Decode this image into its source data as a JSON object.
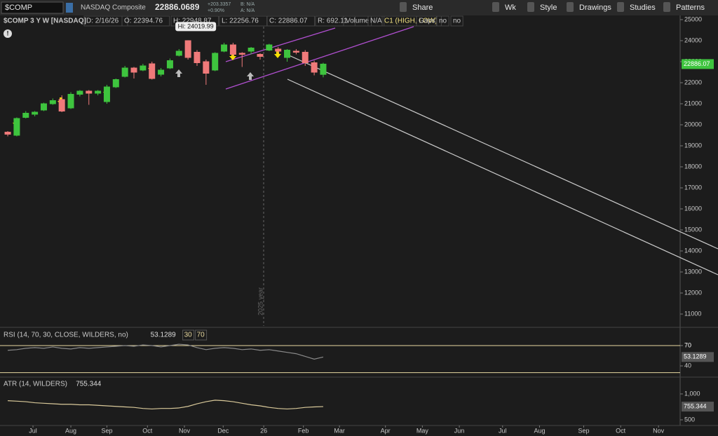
{
  "toolbar": {
    "symbol": "$COMP",
    "name": "NASDAQ Composite",
    "price": "22886.0689",
    "change": "+203.3357",
    "change_pct": "+0.90%",
    "bid": "B: N/A",
    "ask": "A: N/A",
    "buttons": [
      "Share",
      "Wk",
      "Style",
      "Drawings",
      "Studies",
      "Patterns"
    ]
  },
  "header": {
    "title": "$COMP 3 Y W [NASDAQ]",
    "items": [
      "D: 2/16/26",
      "O: 22394.76",
      "H: 22948.87",
      "L: 22256.76",
      "C: 22886.07",
      "R: 692.11",
      "Volume",
      "N/A",
      "C1 (HIGH, LOW)",
      "Gaps",
      "no",
      "no"
    ]
  },
  "chart_data": [
    {
      "type": "candlestick",
      "annotation": "Hi: 24019.99",
      "divider_label": "2025 year",
      "x": [
        0,
        1,
        2,
        3,
        4,
        5,
        6,
        7,
        8,
        9,
        10,
        11,
        12,
        13,
        14,
        15,
        16,
        17,
        18,
        19,
        20,
        21,
        22,
        23,
        24,
        25,
        26,
        27,
        28,
        29,
        30,
        31,
        32,
        33,
        34,
        35
      ],
      "open": [
        19650,
        19500,
        20350,
        20500,
        20700,
        21000,
        21200,
        20800,
        21450,
        21600,
        21500,
        21100,
        21800,
        22300,
        22700,
        22600,
        22900,
        22400,
        22700,
        23300,
        24000,
        23450,
        23000,
        22600,
        23500,
        23800,
        23400,
        23500,
        23350,
        23550,
        23600,
        23200,
        23500,
        23450,
        22950,
        22394.76
      ],
      "high": [
        19700,
        20350,
        20650,
        20650,
        21050,
        21250,
        21400,
        21550,
        21650,
        21650,
        21650,
        21900,
        22200,
        22800,
        22750,
        22900,
        23000,
        22700,
        23150,
        23600,
        24019.99,
        23550,
        23100,
        23450,
        23900,
        23900,
        23450,
        23700,
        23400,
        23850,
        23700,
        23600,
        23600,
        23550,
        23050,
        22948.87
      ],
      "low": [
        19450,
        19450,
        20300,
        20400,
        20650,
        20950,
        20600,
        20750,
        21350,
        20950,
        21400,
        21000,
        21750,
        22250,
        22200,
        22550,
        22150,
        22300,
        22650,
        23250,
        23100,
        22800,
        21900,
        22550,
        23450,
        23250,
        22750,
        23350,
        23100,
        23500,
        23400,
        23000,
        23350,
        22800,
        22350,
        22256.76
      ],
      "close": [
        19550,
        20300,
        20550,
        20600,
        21000,
        21150,
        20650,
        21450,
        21600,
        21500,
        21600,
        21800,
        22150,
        22700,
        22500,
        22800,
        22200,
        22600,
        23050,
        23500,
        23200,
        22950,
        22450,
        23400,
        23800,
        23350,
        23350,
        23650,
        23250,
        23800,
        23500,
        23550,
        23450,
        22950,
        22500,
        22886.07
      ],
      "up_color": "#3ec43e",
      "down_color": "#f07a7a",
      "xlim": [
        -0.86,
        74.6
      ],
      "xticks": [
        {
          "value": 2.8,
          "label": "Jul"
        },
        {
          "value": 7.0,
          "label": "Aug"
        },
        {
          "value": 11.0,
          "label": "Sep"
        },
        {
          "value": 15.5,
          "label": "Oct"
        },
        {
          "value": 19.6,
          "label": "Nov"
        },
        {
          "value": 23.9,
          "label": "Dec"
        },
        {
          "value": 28.4,
          "label": "26"
        },
        {
          "value": 32.8,
          "label": "Feb"
        },
        {
          "value": 36.8,
          "label": "Mar"
        },
        {
          "value": 41.9,
          "label": "Apr"
        },
        {
          "value": 46.0,
          "label": "May"
        },
        {
          "value": 50.1,
          "label": "Jun"
        },
        {
          "value": 54.9,
          "label": "Jul"
        },
        {
          "value": 59.0,
          "label": "Aug"
        },
        {
          "value": 63.9,
          "label": "Sep"
        },
        {
          "value": 68.0,
          "label": "Oct"
        },
        {
          "value": 72.2,
          "label": "Nov"
        }
      ],
      "ylim": [
        10433,
        25200
      ],
      "yticks": [
        11000,
        12000,
        13000,
        14000,
        15000,
        16000,
        17000,
        18000,
        19000,
        20000,
        21000,
        22000,
        23000,
        24000,
        25000
      ]
    },
    {
      "type": "line",
      "title": "RSI (14, 70, 30, CLOSE, WILDERS, no)",
      "levels": [
        30,
        70
      ],
      "color": "#8a8a8a",
      "level_color": "#e8d9a0",
      "values": [
        63,
        64,
        66,
        67,
        66,
        68,
        66,
        65,
        67,
        66,
        67,
        68,
        69,
        70,
        69,
        71,
        70,
        68,
        70,
        72,
        71,
        67,
        64,
        66,
        67,
        66,
        64,
        65,
        63,
        64,
        62,
        60,
        58,
        54,
        50,
        53.1289
      ],
      "ylim": [
        24.5,
        93.8
      ],
      "yticks": [
        40,
        70
      ]
    },
    {
      "type": "line",
      "title": "ATR (14, WILDERS)",
      "color": "#d9c99a",
      "values": [
        870,
        860,
        850,
        830,
        820,
        810,
        800,
        800,
        790,
        790,
        780,
        770,
        760,
        750,
        740,
        720,
        710,
        720,
        720,
        730,
        760,
        810,
        850,
        880,
        870,
        850,
        820,
        790,
        770,
        740,
        720,
        710,
        720,
        740,
        750,
        755.344
      ],
      "ylim": [
        405,
        1297
      ],
      "yticks": [
        {
          "value": 1000,
          "label": "1,000"
        },
        500
      ]
    }
  ]
}
